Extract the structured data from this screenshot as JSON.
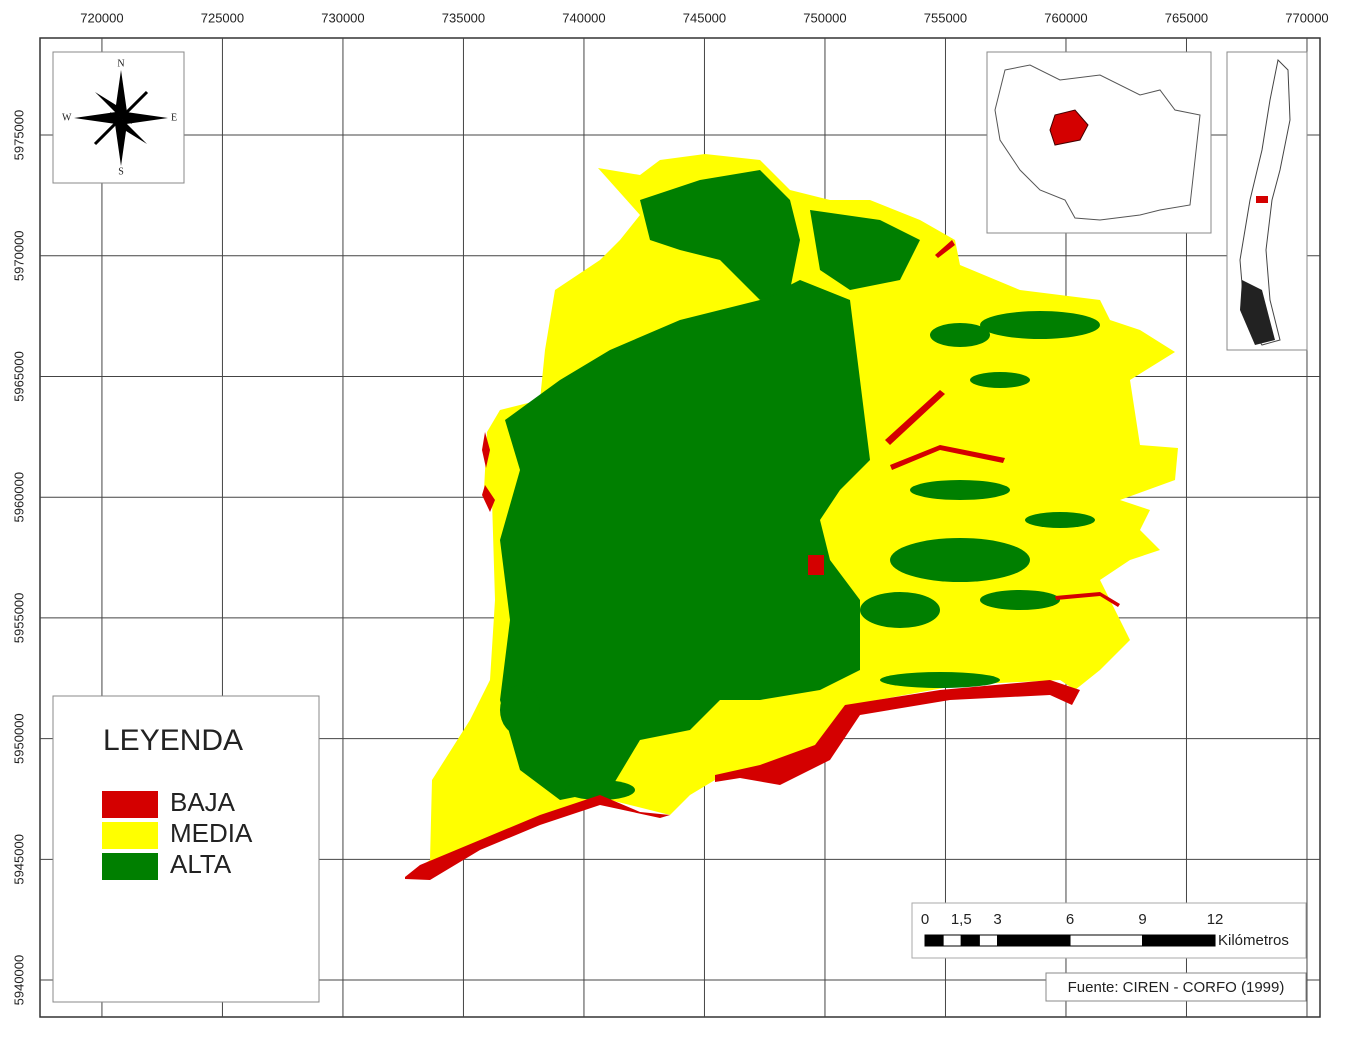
{
  "map": {
    "xlim": [
      717430,
      770540
    ],
    "ylim": [
      5938470,
      5979020
    ],
    "xticks": [
      720000,
      725000,
      730000,
      735000,
      740000,
      745000,
      750000,
      755000,
      760000,
      765000,
      770000
    ],
    "yticks": [
      5940000,
      5945000,
      5950000,
      5955000,
      5960000,
      5965000,
      5970000,
      5975000
    ],
    "grid": true
  },
  "compass": {
    "n": "N",
    "s": "S",
    "e": "E",
    "w": "W"
  },
  "legend": {
    "title": "LEYENDA",
    "items": [
      {
        "label": "BAJA",
        "color": "#d40000"
      },
      {
        "label": "MEDIA",
        "color": "#ffff00"
      },
      {
        "label": "ALTA",
        "color": "#007f00"
      }
    ]
  },
  "scale_bar": {
    "ticks": [
      0,
      {
        "value": 1.5,
        "label": "1,5"
      },
      3,
      6,
      9,
      12
    ],
    "unit": "Kilómetros"
  },
  "source": "Fuente: CIREN - CORFO (1999)"
}
